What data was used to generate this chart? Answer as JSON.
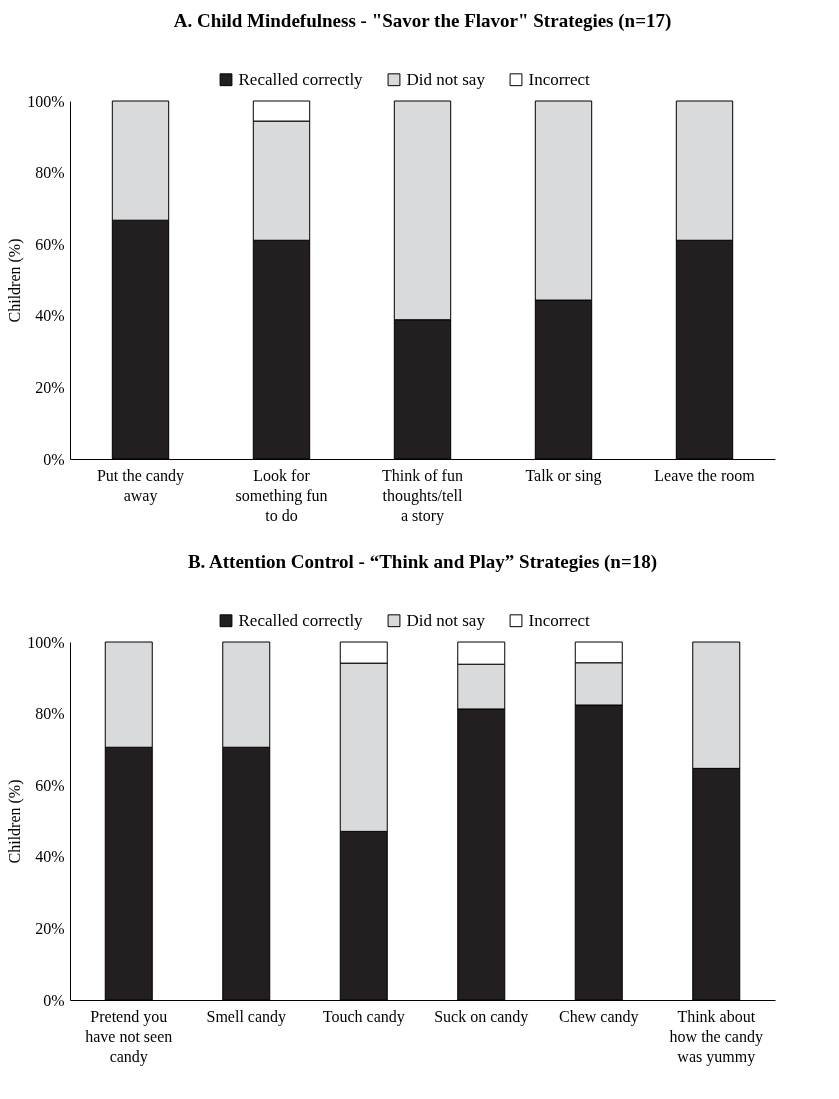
{
  "chart_data": [
    {
      "type": "bar",
      "title": "A. Child Mindefulness - \"Savor the Flavor\" Strategies (n=17)",
      "ylabel": "Children (%)",
      "categories": [
        "Put the candy away",
        "Look for something fun to do",
        "Think of fun thoughts/tell a story",
        "Talk or sing",
        "Leave the room"
      ],
      "stacked": true,
      "legend": "top",
      "grid": false,
      "ylim": [
        0,
        100
      ],
      "yticks": [
        {
          "value": 0,
          "label": "0%"
        },
        {
          "value": 20,
          "label": "20%"
        },
        {
          "value": 40,
          "label": "40%"
        },
        {
          "value": 60,
          "label": "60%"
        },
        {
          "value": 80,
          "label": "80%"
        },
        {
          "value": 100,
          "label": "100%"
        }
      ],
      "series": [
        {
          "name": "Recalled correctly",
          "color": "#231f20",
          "values": [
            66.7,
            61.1,
            38.9,
            44.4,
            61.1
          ]
        },
        {
          "name": "Did not say",
          "color": "#d9dadc",
          "values": [
            33.3,
            33.3,
            61.1,
            55.6,
            38.9
          ]
        },
        {
          "name": "Incorrect",
          "color": "#ffffff",
          "values": [
            null,
            5.6,
            null,
            null,
            null
          ]
        }
      ]
    },
    {
      "type": "bar",
      "title": "B. Attention Control - “Think and Play” Strategies (n=18)",
      "ylabel": "Children (%)",
      "categories": [
        "Pretend you have not seen candy",
        "Smell candy",
        "Touch candy",
        "Suck on candy",
        "Chew candy",
        "Think about how the candy was yummy"
      ],
      "stacked": true,
      "legend": "top",
      "grid": false,
      "ylim": [
        0,
        100
      ],
      "yticks": [
        {
          "value": 0,
          "label": "0%"
        },
        {
          "value": 20,
          "label": "20%"
        },
        {
          "value": 40,
          "label": "40%"
        },
        {
          "value": 60,
          "label": "60%"
        },
        {
          "value": 80,
          "label": "80%"
        },
        {
          "value": 100,
          "label": "100%"
        }
      ],
      "series": [
        {
          "name": "Recalled correctly",
          "color": "#231f20",
          "values": [
            70.6,
            70.6,
            47.1,
            81.3,
            82.4,
            64.7
          ]
        },
        {
          "name": "Did not say",
          "color": "#d9dadc",
          "values": [
            29.4,
            29.4,
            47.0,
            12.5,
            11.8,
            35.3
          ]
        },
        {
          "name": "Incorrect",
          "color": "#ffffff",
          "values": [
            null,
            null,
            5.9,
            6.2,
            5.8,
            null
          ]
        }
      ]
    }
  ]
}
